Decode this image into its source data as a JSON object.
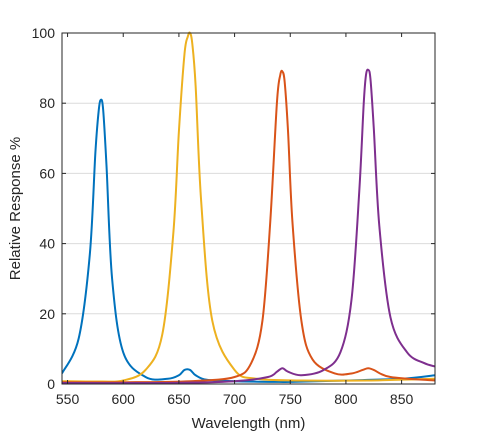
{
  "chart_data": {
    "type": "line",
    "title": "",
    "xlabel": "Wavelength (nm)",
    "ylabel": "Relative Response %",
    "xlim": [
      545,
      880
    ],
    "ylim": [
      0,
      100
    ],
    "xticks": [
      550,
      600,
      650,
      700,
      750,
      800,
      850
    ],
    "yticks": [
      0,
      20,
      40,
      60,
      80,
      100
    ],
    "grid": "horizontal",
    "legend": "none",
    "series": [
      {
        "color": "#0072BD",
        "x": [
          545,
          560,
          570,
          575,
          578,
          580,
          582,
          585,
          590,
          600,
          620,
          640,
          650,
          655,
          660,
          665,
          675,
          700,
          740,
          750,
          800,
          850,
          880
        ],
        "y": [
          3,
          13,
          37,
          66,
          78,
          81,
          78,
          62,
          30,
          9,
          2,
          1.5,
          2.5,
          4,
          4,
          2.5,
          1.2,
          0.8,
          0.6,
          0.6,
          1,
          1.5,
          2.5
        ]
      },
      {
        "color": "#EDB120",
        "x": [
          545,
          580,
          600,
          620,
          635,
          645,
          650,
          655,
          658,
          660,
          662,
          665,
          670,
          680,
          700,
          720,
          760,
          820,
          880
        ],
        "y": [
          0.8,
          0.7,
          1,
          4,
          14,
          43,
          72,
          94,
          99,
          100,
          97,
          85,
          52,
          18,
          4,
          1.5,
          1,
          1,
          1.5
        ]
      },
      {
        "color": "#D95319",
        "x": [
          545,
          600,
          660,
          700,
          715,
          725,
          732,
          738,
          741,
          743,
          745,
          748,
          752,
          760,
          770,
          790,
          805,
          815,
          820,
          825,
          840,
          880
        ],
        "y": [
          0.5,
          0.5,
          0.8,
          2,
          6,
          18,
          46,
          80,
          88,
          89,
          86,
          72,
          46,
          18,
          7,
          3,
          3,
          4,
          4.5,
          4,
          2,
          1
        ]
      },
      {
        "color": "#7E2F8E",
        "x": [
          545,
          640,
          700,
          730,
          738,
          743,
          748,
          760,
          780,
          795,
          805,
          812,
          816,
          818,
          820,
          822,
          825,
          830,
          840,
          855,
          870,
          880
        ],
        "y": [
          0.3,
          0.3,
          0.8,
          2,
          3.5,
          4.5,
          3.5,
          2.5,
          4,
          9,
          24,
          55,
          80,
          88,
          89.5,
          87,
          73,
          45,
          19,
          9,
          6,
          5
        ]
      }
    ]
  }
}
